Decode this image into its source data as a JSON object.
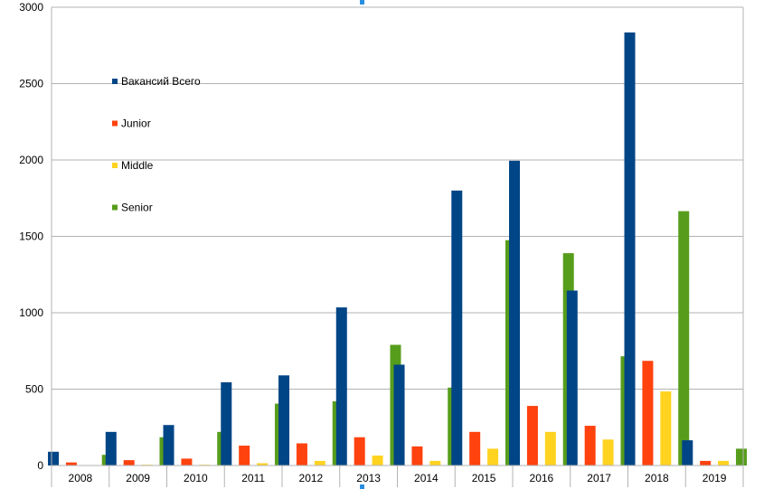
{
  "chart_data": {
    "type": "bar",
    "title": "",
    "xlabel": "",
    "ylabel": "",
    "categories": [
      "2008",
      "2009",
      "2010",
      "2011",
      "2012",
      "2013",
      "2014",
      "2015",
      "2016",
      "2017",
      "2018",
      "2019"
    ],
    "ylim": [
      0,
      3000
    ],
    "yticks": [
      0,
      500,
      1000,
      1500,
      2000,
      2500,
      3000
    ],
    "grid": true,
    "legend_position": "top-left",
    "series": [
      {
        "name": "Вакансий Всего",
        "color": "#004586",
        "values": [
          90,
          220,
          265,
          545,
          590,
          1035,
          660,
          1800,
          1995,
          1145,
          2835,
          165
        ]
      },
      {
        "name": "Junior",
        "color": "#ff420e",
        "values": [
          20,
          35,
          45,
          130,
          145,
          185,
          125,
          220,
          390,
          260,
          685,
          30
        ]
      },
      {
        "name": "Middle",
        "color": "#ffd320",
        "values": [
          3,
          5,
          5,
          15,
          30,
          65,
          30,
          110,
          220,
          170,
          485,
          30
        ]
      },
      {
        "name": "Senior",
        "color": "#579d1c",
        "values": [
          70,
          185,
          220,
          405,
          420,
          790,
          510,
          1475,
          1390,
          715,
          1665,
          110
        ]
      }
    ]
  }
}
